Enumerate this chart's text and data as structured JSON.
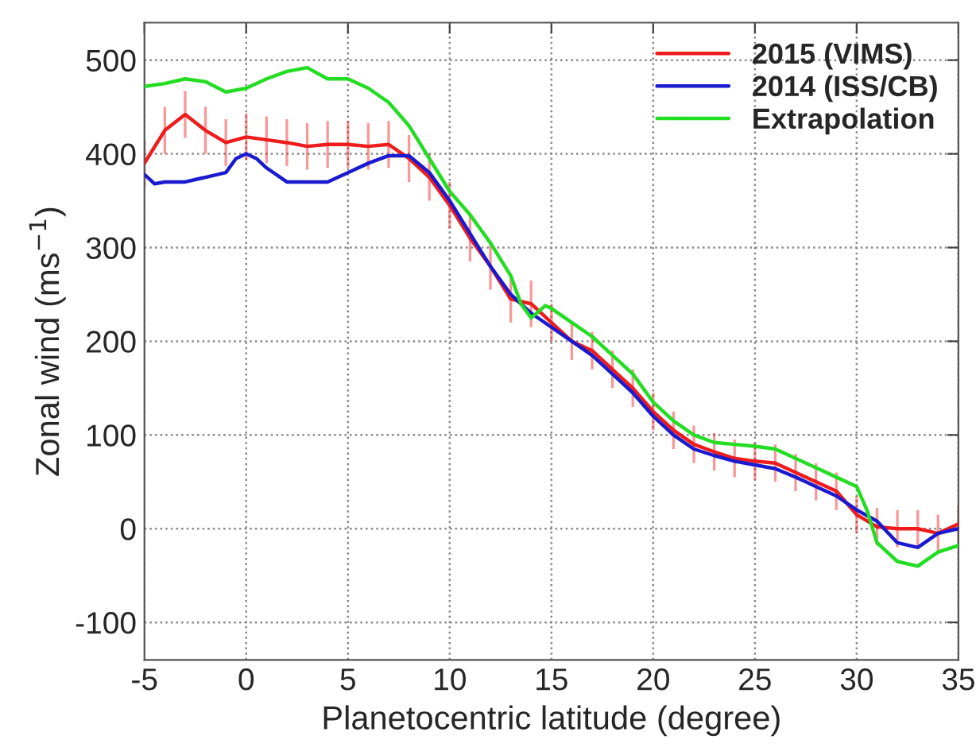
{
  "chart_data": {
    "type": "line",
    "xlabel": "Planetocentric latitude (degree)",
    "ylabel": "Zonal wind (ms$^{−1}$)",
    "xlim": [
      -5,
      35
    ],
    "xticks": [
      -5,
      0,
      5,
      10,
      15,
      20,
      25,
      30,
      35
    ],
    "ylim": [
      -140,
      540
    ],
    "yticks": [
      -100,
      0,
      100,
      200,
      300,
      400,
      500
    ],
    "grid": true,
    "legend": "top right",
    "line_style": "solid",
    "marker": "none",
    "series": [
      {
        "name": "2015 (VIMS)",
        "color": "#ee1c1c",
        "x": [
          -5,
          -4,
          -3,
          -2,
          -1,
          0,
          1,
          2,
          3,
          4,
          5,
          6,
          7,
          8,
          9,
          10,
          11,
          12,
          13,
          14,
          15,
          16,
          17,
          18,
          19,
          20,
          21,
          22,
          23,
          24,
          25,
          26,
          27,
          28,
          29,
          30,
          31,
          32,
          33,
          34,
          35
        ],
        "values": [
          390,
          425,
          442,
          425,
          412,
          418,
          415,
          412,
          408,
          410,
          410,
          408,
          410,
          395,
          375,
          345,
          310,
          280,
          245,
          240,
          220,
          200,
          190,
          170,
          150,
          125,
          105,
          90,
          82,
          75,
          72,
          70,
          60,
          50,
          40,
          15,
          2,
          0,
          0,
          -5,
          5
        ],
        "errors": [
          25,
          25,
          25,
          25,
          25,
          25,
          25,
          25,
          25,
          25,
          25,
          25,
          25,
          25,
          25,
          25,
          25,
          25,
          25,
          25,
          20,
          20,
          20,
          20,
          20,
          20,
          20,
          20,
          20,
          20,
          20,
          20,
          20,
          20,
          20,
          20,
          20,
          20,
          20,
          20,
          20
        ]
      },
      {
        "name": "2014 (ISS/CB)",
        "color": "#1a1ad0",
        "x": [
          -5,
          -4.5,
          -4,
          -3,
          -2,
          -1,
          -0.5,
          0,
          0.5,
          1,
          2,
          3,
          4,
          5,
          6,
          7,
          8,
          9,
          10,
          11,
          12,
          13,
          14,
          15,
          16,
          17,
          18,
          19,
          20,
          21,
          22,
          23,
          24,
          25,
          26,
          27,
          28,
          29,
          30,
          31,
          32,
          33,
          34,
          35
        ],
        "values": [
          378,
          368,
          370,
          370,
          375,
          380,
          395,
          400,
          395,
          385,
          370,
          370,
          370,
          380,
          390,
          398,
          398,
          380,
          350,
          315,
          280,
          250,
          230,
          215,
          200,
          185,
          165,
          145,
          120,
          100,
          85,
          78,
          72,
          68,
          64,
          55,
          45,
          35,
          20,
          8,
          -15,
          -20,
          -5,
          0
        ]
      },
      {
        "name": "Extrapolation",
        "color": "#22dd22",
        "x": [
          -5,
          -4,
          -3,
          -2,
          -1,
          0,
          1,
          2,
          3,
          4,
          5,
          6,
          7,
          8,
          9,
          10,
          11,
          12,
          13,
          13.5,
          14,
          14.7,
          15,
          16,
          17,
          18,
          19,
          20,
          21,
          22,
          23,
          24,
          25,
          26,
          27,
          28,
          29,
          30,
          30.5,
          31,
          32,
          33,
          34,
          35
        ],
        "values": [
          472,
          475,
          480,
          477,
          466,
          470,
          480,
          488,
          492,
          480,
          480,
          470,
          455,
          430,
          395,
          360,
          335,
          305,
          270,
          240,
          225,
          238,
          235,
          220,
          205,
          185,
          165,
          135,
          115,
          100,
          92,
          90,
          88,
          85,
          75,
          65,
          55,
          45,
          20,
          -15,
          -35,
          -40,
          -25,
          -18
        ]
      }
    ]
  }
}
